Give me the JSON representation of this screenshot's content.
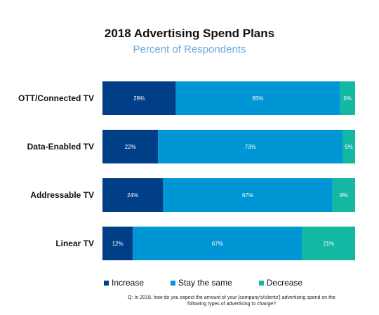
{
  "title": "2018 Advertising Spend Plans",
  "subtitle": "Percent of Respondents",
  "footnote": "Q: In 2018, how do you expect the amount of your [company's/clients'] advertising spend on the following types of advertising to change?",
  "colors": {
    "increase": "#003f87",
    "stay": "#0096d6",
    "decrease": "#13b8a3"
  },
  "legend": [
    {
      "label": "Increase",
      "color_key": "increase"
    },
    {
      "label": "Stay the same",
      "color_key": "stay"
    },
    {
      "label": "Decrease",
      "color_key": "decrease"
    }
  ],
  "chart_data": {
    "type": "bar",
    "orientation": "horizontal",
    "stacked": true,
    "categories": [
      "OTT/Connected TV",
      "Data-Enabled TV",
      "Addressable TV",
      "Linear TV"
    ],
    "series": [
      {
        "name": "Increase",
        "values": [
          29,
          22,
          24,
          12
        ],
        "labels": [
          "29%",
          "22%",
          "24%",
          "12%"
        ]
      },
      {
        "name": "Stay the same",
        "values": [
          65,
          73,
          67,
          67
        ],
        "labels": [
          "65%",
          "73%",
          "67%",
          "67%"
        ]
      },
      {
        "name": "Decrease",
        "values": [
          6,
          5,
          9,
          21
        ],
        "labels": [
          "6%",
          "5%",
          "9%",
          "21%"
        ]
      }
    ],
    "title": "2018 Advertising Spend Plans",
    "subtitle": "Percent of Respondents",
    "xlabel": "",
    "ylabel": "",
    "xlim": [
      0,
      100
    ],
    "grid": false,
    "legend_position": "bottom"
  }
}
